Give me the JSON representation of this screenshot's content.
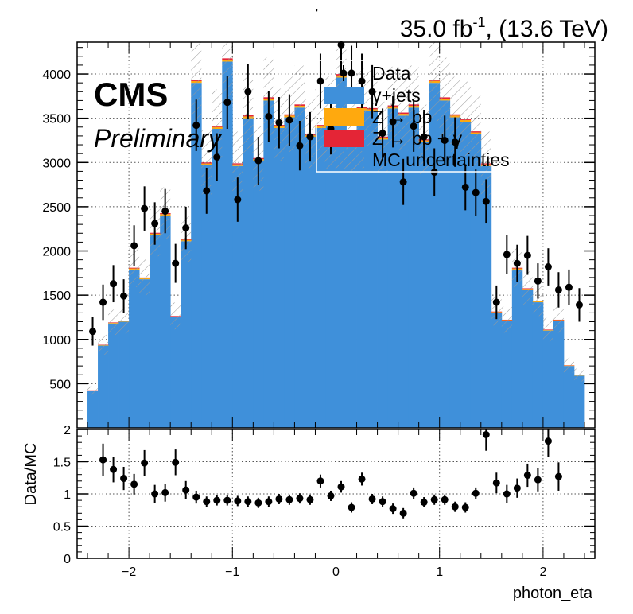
{
  "header": {
    "lumi": "35.0 fb",
    "lumi_exp": "-1",
    "energy": ", (13.6 TeV)",
    "tick_mark": "'"
  },
  "cms": {
    "label": "CMS",
    "sublabel": "Preliminary"
  },
  "legend": [
    {
      "label": "Data",
      "kind": "marker",
      "color": "#000000"
    },
    {
      "label": "γ+jets",
      "kind": "fill",
      "color": "#3f90da"
    },
    {
      "label": "Z → bb",
      "kind": "fill",
      "color": "#ffa90e"
    },
    {
      "label": "Z → bb + γ",
      "kind": "fill",
      "color": "#e42536"
    },
    {
      "label": "MC uncertainties",
      "kind": "hatch",
      "color": "#999999"
    }
  ],
  "chart_data": [
    {
      "type": "bar",
      "panel": "main",
      "xlim": [
        -2.5,
        2.5
      ],
      "ylim": [
        0,
        4360
      ],
      "yticks": [
        500,
        1000,
        1500,
        2000,
        2500,
        3000,
        3500,
        4000
      ],
      "grid": true,
      "bin_edges": [
        -2.4,
        -2.3,
        -2.2,
        -2.1,
        -2.0,
        -1.9,
        -1.8,
        -1.7,
        -1.6,
        -1.5,
        -1.4,
        -1.3,
        -1.2,
        -1.1,
        -1.0,
        -0.9,
        -0.8,
        -0.7,
        -0.6,
        -0.5,
        -0.4,
        -0.3,
        -0.2,
        -0.1,
        0.0,
        0.1,
        0.2,
        0.3,
        0.4,
        0.5,
        0.6,
        0.7,
        0.8,
        0.9,
        1.0,
        1.1,
        1.2,
        1.3,
        1.4,
        1.5,
        1.6,
        1.7,
        1.8,
        1.9,
        2.0,
        2.1,
        2.2,
        2.3,
        2.4
      ],
      "series": [
        {
          "name": "γ+jets",
          "color": "#3f90da",
          "values": [
            420,
            930,
            1180,
            1200,
            1790,
            1680,
            2180,
            2400,
            1250,
            2110,
            3900,
            2970,
            3380,
            4140,
            2960,
            3500,
            3020,
            3700,
            3390,
            3510,
            3620,
            3290,
            3390,
            3520,
            3960,
            3250,
            3590,
            3580,
            3260,
            3610,
            3530,
            3620,
            3230,
            3900,
            3700,
            3510,
            3460,
            3320,
            2960,
            1300,
            1210,
            1790,
            1560,
            1420,
            1100,
            1210,
            700,
            590
          ]
        },
        {
          "name": "Z → bb",
          "color": "#ffa90e",
          "values": [
            3,
            6,
            8,
            8,
            12,
            12,
            15,
            16,
            9,
            15,
            20,
            18,
            20,
            22,
            18,
            20,
            18,
            22,
            20,
            20,
            21,
            19,
            20,
            21,
            23,
            19,
            21,
            21,
            19,
            21,
            20,
            21,
            19,
            22,
            21,
            20,
            20,
            19,
            18,
            9,
            8,
            12,
            11,
            10,
            7,
            8,
            5,
            4
          ]
        },
        {
          "name": "Z → bb + γ",
          "color": "#e42536",
          "values": [
            2,
            4,
            5,
            5,
            8,
            8,
            10,
            11,
            6,
            10,
            14,
            12,
            14,
            15,
            12,
            14,
            12,
            15,
            14,
            14,
            15,
            13,
            14,
            14,
            16,
            13,
            14,
            14,
            13,
            14,
            14,
            15,
            13,
            15,
            15,
            14,
            14,
            13,
            12,
            6,
            5,
            8,
            7,
            7,
            5,
            5,
            3,
            3
          ]
        }
      ],
      "data_points": {
        "name": "Data",
        "x": [
          -2.35,
          -2.25,
          -2.15,
          -2.05,
          -1.95,
          -1.85,
          -1.75,
          -1.65,
          -1.55,
          -1.45,
          -1.35,
          -1.25,
          -1.15,
          -1.05,
          -0.95,
          -0.85,
          -0.75,
          -0.65,
          -0.55,
          -0.45,
          -0.35,
          -0.25,
          -0.15,
          -0.05,
          0.05,
          0.15,
          0.25,
          0.35,
          0.45,
          0.55,
          0.65,
          0.75,
          0.85,
          0.95,
          1.05,
          1.15,
          1.25,
          1.35,
          1.45,
          1.55,
          1.65,
          1.75,
          1.85,
          1.95,
          2.05,
          2.15,
          2.25,
          2.35
        ],
        "y": [
          1090,
          1420,
          1630,
          1490,
          2060,
          2480,
          2310,
          2450,
          1860,
          2260,
          3420,
          2680,
          3060,
          3680,
          2580,
          3800,
          3020,
          3520,
          3450,
          3480,
          3190,
          3290,
          3920,
          3380,
          4330,
          4010,
          3920,
          3800,
          3330,
          3460,
          2780,
          3410,
          3290,
          2890,
          3250,
          3230,
          2720,
          2660,
          2560,
          1420,
          1960,
          1860,
          1950,
          1660,
          1820,
          1560,
          1590,
          1390
        ],
        "err": [
          160,
          200,
          210,
          190,
          230,
          250,
          240,
          250,
          220,
          240,
          290,
          260,
          270,
          300,
          250,
          310,
          270,
          290,
          290,
          290,
          280,
          280,
          310,
          290,
          330,
          310,
          310,
          300,
          280,
          290,
          260,
          290,
          280,
          270,
          280,
          280,
          260,
          260,
          250,
          190,
          220,
          210,
          220,
          200,
          210,
          200,
          200,
          190
        ]
      },
      "mc_uncertainty": [
        0.12,
        0.12,
        0.12,
        0.12,
        0.12,
        0.12,
        0.12,
        0.12,
        0.12,
        0.12,
        0.12,
        0.12,
        0.12,
        0.12,
        0.12,
        0.12,
        0.12,
        0.12,
        0.12,
        0.12,
        0.12,
        0.12,
        0.12,
        0.12,
        0.12,
        0.12,
        0.12,
        0.12,
        0.12,
        0.12,
        0.12,
        0.12,
        0.12,
        0.12,
        0.12,
        0.12,
        0.12,
        0.12,
        0.12,
        0.12,
        0.12,
        0.12,
        0.12,
        0.12,
        0.12,
        0.12,
        0.12,
        0.12
      ]
    },
    {
      "type": "scatter",
      "panel": "ratio",
      "xlabel": "photon_eta",
      "ylabel": "Data/MC",
      "xlim": [
        -2.5,
        2.5
      ],
      "ylim": [
        0,
        2
      ],
      "yticks": [
        0,
        0.5,
        1,
        1.5,
        2
      ],
      "xticks": [
        -2,
        -1,
        0,
        1,
        2
      ],
      "grid": true,
      "x": [
        -2.25,
        -2.15,
        -2.05,
        -1.95,
        -1.85,
        -1.75,
        -1.65,
        -1.55,
        -1.45,
        -1.35,
        -1.25,
        -1.15,
        -1.05,
        -0.95,
        -0.85,
        -0.75,
        -0.65,
        -0.55,
        -0.45,
        -0.35,
        -0.25,
        -0.15,
        -0.05,
        0.05,
        0.15,
        0.25,
        0.35,
        0.45,
        0.55,
        0.65,
        0.75,
        0.85,
        0.95,
        1.05,
        1.15,
        1.25,
        1.35,
        1.45,
        1.55,
        1.65,
        1.75,
        1.85,
        1.95,
        2.05,
        2.15
      ],
      "y": [
        1.53,
        1.38,
        1.24,
        1.15,
        1.48,
        1.0,
        1.02,
        1.49,
        1.06,
        0.95,
        0.88,
        0.9,
        0.9,
        0.89,
        0.88,
        0.86,
        0.88,
        0.92,
        0.91,
        0.93,
        0.91,
        1.2,
        0.97,
        1.11,
        0.79,
        1.23,
        0.92,
        0.88,
        0.77,
        0.7,
        1.01,
        0.87,
        0.91,
        0.91,
        0.8,
        0.79,
        1.01,
        1.92,
        1.17,
        1.0,
        1.09,
        1.29,
        1.22,
        1.82,
        1.27
      ],
      "err": [
        0.25,
        0.2,
        0.18,
        0.16,
        0.2,
        0.14,
        0.14,
        0.2,
        0.14,
        0.1,
        0.08,
        0.08,
        0.08,
        0.08,
        0.08,
        0.08,
        0.08,
        0.08,
        0.08,
        0.08,
        0.08,
        0.1,
        0.08,
        0.09,
        0.08,
        0.1,
        0.08,
        0.08,
        0.08,
        0.08,
        0.09,
        0.08,
        0.08,
        0.08,
        0.08,
        0.08,
        0.09,
        0.25,
        0.16,
        0.14,
        0.15,
        0.18,
        0.18,
        0.25,
        0.22
      ]
    }
  ]
}
